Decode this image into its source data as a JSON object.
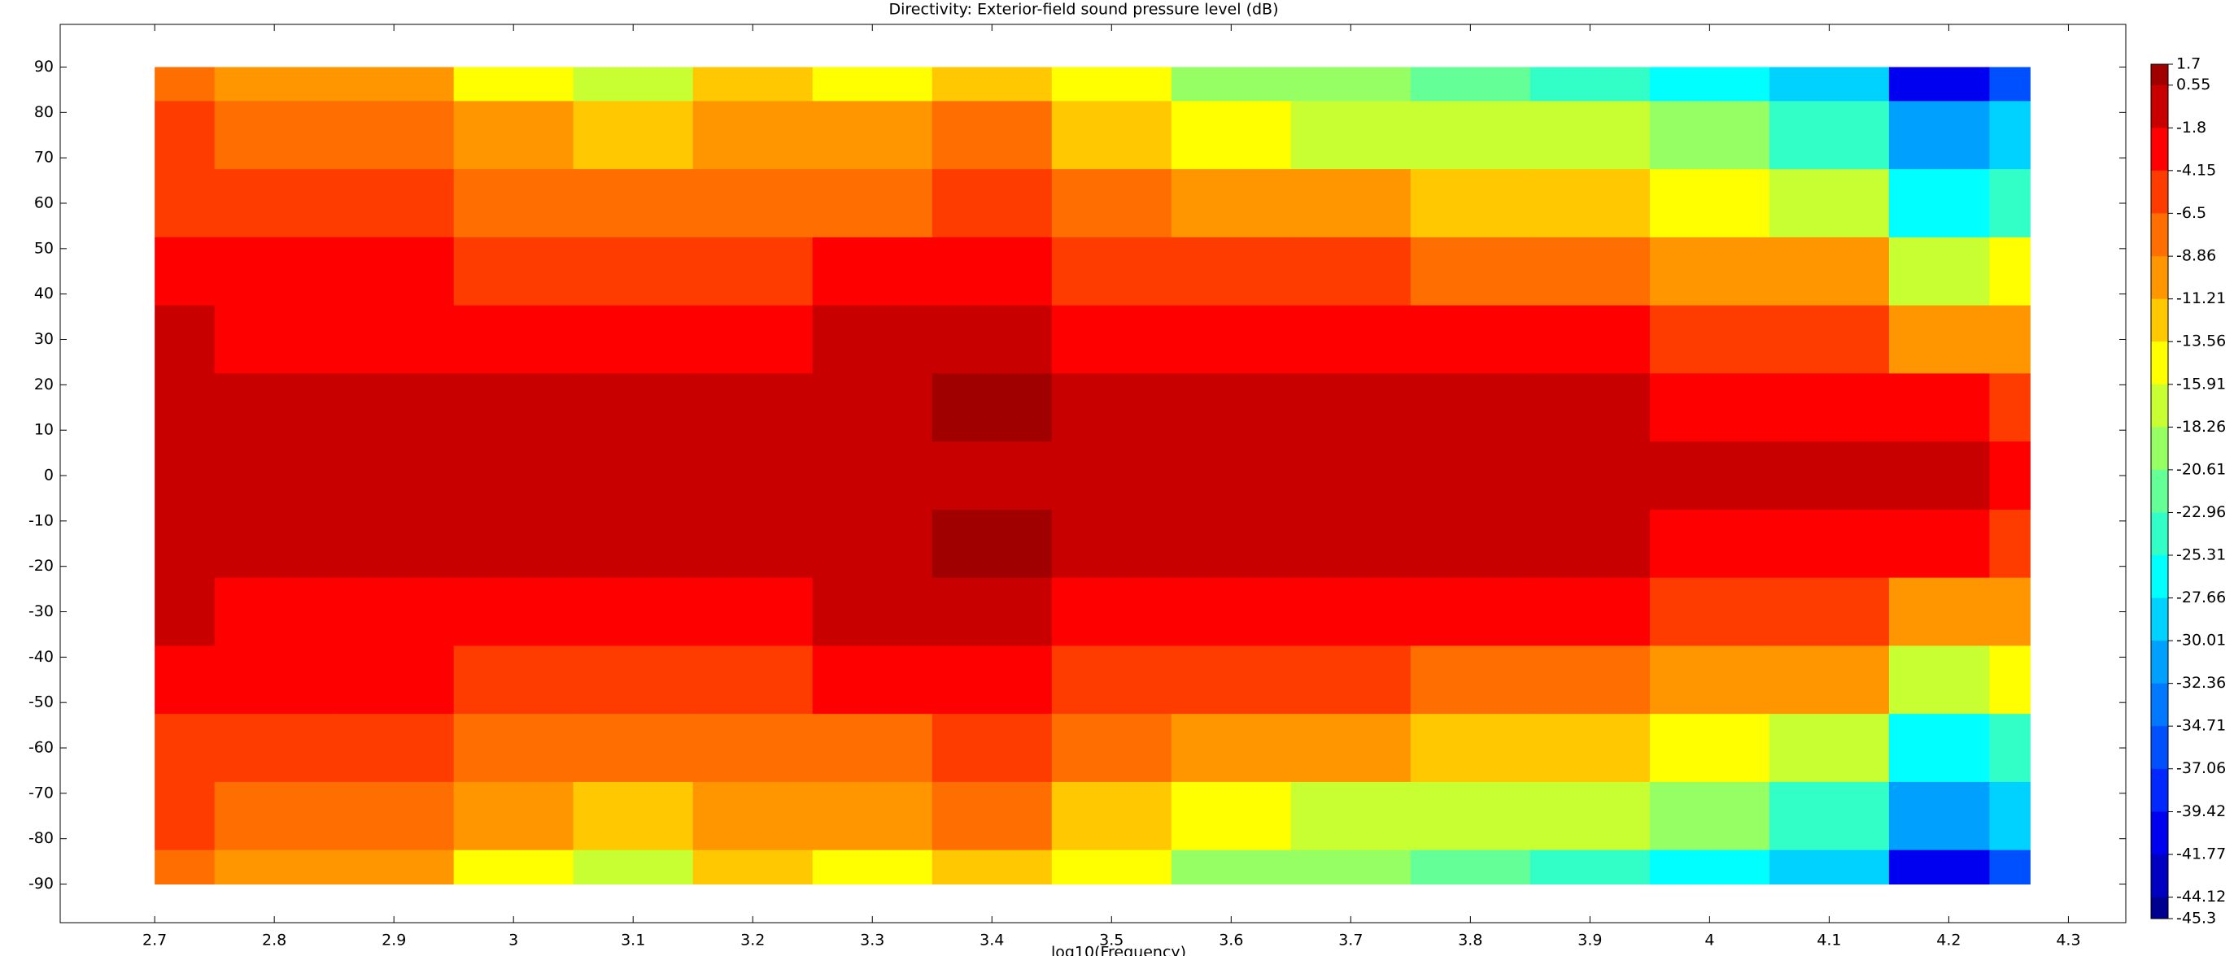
{
  "chart_data": {
    "type": "contour",
    "title": "Directivity: Exterior-field sound pressure level (dB)",
    "xlabel": "log10(Frequency)",
    "xlim": [
      2.621,
      4.348
    ],
    "ylim": [
      -98.5,
      99.4
    ],
    "xticks": [
      2.7,
      2.8,
      2.9,
      3,
      3.1,
      3.2,
      3.3,
      3.4,
      3.5,
      3.6,
      3.7,
      3.8,
      3.9,
      4,
      4.1,
      4.2,
      4.3
    ],
    "yticks": [
      -90,
      -80,
      -70,
      -60,
      -50,
      -40,
      -30,
      -20,
      -10,
      0,
      10,
      20,
      30,
      40,
      50,
      60,
      70,
      80,
      90
    ],
    "x": [
      2.7,
      2.8,
      2.9,
      3.0,
      3.1,
      3.2,
      3.3,
      3.4,
      3.5,
      3.6,
      3.7,
      3.8,
      3.9,
      4.0,
      4.1,
      4.2,
      4.268
    ],
    "y": [
      90,
      75,
      60,
      45,
      30,
      15,
      0,
      -15,
      -30,
      -45,
      -60,
      -75,
      -90
    ],
    "z": [
      [
        -8,
        -9,
        -11,
        -14,
        -17,
        -13,
        -14,
        -13,
        -15,
        -19,
        -20,
        -22,
        -24,
        -26,
        -30,
        -40,
        -36
      ],
      [
        -6,
        -6.5,
        -8,
        -10,
        -13,
        -11,
        -10,
        -8,
        -12,
        -14,
        -16,
        -17,
        -18,
        -20,
        -24,
        -32,
        -30
      ],
      [
        -5,
        -5.5,
        -6,
        -7,
        -8,
        -7.5,
        -7,
        -5,
        -8,
        -9,
        -11,
        -12,
        -13,
        -14,
        -17,
        -26,
        -24
      ],
      [
        -3,
        -3.5,
        -4,
        -4.5,
        -5,
        -5,
        -4,
        -3,
        -5,
        -5,
        -6,
        -7,
        -8,
        -9,
        -11,
        -17,
        -15
      ],
      [
        -1.5,
        -2,
        -2,
        -2.5,
        -3,
        -2.5,
        -1.5,
        -1,
        -2.5,
        -3,
        -3,
        -3.5,
        -4,
        -4.5,
        -6,
        -10,
        -10
      ],
      [
        -1,
        -1,
        -1,
        -1,
        -1.2,
        -1,
        -1,
        0.8,
        -1.5,
        -1.2,
        -1.2,
        -1.5,
        -1.5,
        -1.8,
        -2.5,
        -4,
        -5
      ],
      [
        -0.8,
        -0.8,
        -0.8,
        -0.8,
        -0.8,
        -0.8,
        -0.8,
        -0.5,
        -1,
        -0.8,
        -0.8,
        -0.5,
        -0.8,
        -1,
        -1,
        -1.5,
        -2
      ],
      [
        -1,
        -1,
        -1,
        -1,
        -1.2,
        -1,
        -1,
        0.8,
        -1.5,
        -1.2,
        -1.2,
        -1.5,
        -1.5,
        -1.8,
        -2.5,
        -4,
        -5
      ],
      [
        -1.5,
        -2,
        -2,
        -2.5,
        -3,
        -2.5,
        -1.5,
        -1,
        -2.5,
        -3,
        -3,
        -3.5,
        -4,
        -4.5,
        -6,
        -10,
        -10
      ],
      [
        -3,
        -3.5,
        -4,
        -4.5,
        -5,
        -5,
        -4,
        -3,
        -5,
        -5,
        -6,
        -7,
        -8,
        -9,
        -11,
        -17,
        -15
      ],
      [
        -5,
        -5.5,
        -6,
        -7,
        -8,
        -7.5,
        -7,
        -5,
        -8,
        -9,
        -11,
        -12,
        -13,
        -14,
        -17,
        -26,
        -24
      ],
      [
        -6,
        -6.5,
        -8,
        -10,
        -13,
        -11,
        -10,
        -8,
        -12,
        -14,
        -16,
        -17,
        -18,
        -20,
        -24,
        -32,
        -30
      ],
      [
        -8,
        -9,
        -11,
        -14,
        -17,
        -13,
        -14,
        -13,
        -15,
        -19,
        -20,
        -22,
        -24,
        -26,
        -30,
        -40,
        -36
      ]
    ],
    "colorbar": {
      "ticks": [
        1.7,
        0.55,
        -1.8,
        -4.15,
        -6.5,
        -8.86,
        -11.21,
        -13.56,
        -15.91,
        -18.26,
        -20.61,
        -22.96,
        -25.31,
        -27.66,
        -30.01,
        -32.36,
        -34.71,
        -37.06,
        -39.42,
        -41.77,
        -44.12,
        -45.3
      ],
      "colors": [
        "#a00000",
        "#c80000",
        "#ff0000",
        "#ff3c00",
        "#ff6e00",
        "#ff9600",
        "#ffc800",
        "#ffff00",
        "#c8ff32",
        "#96ff64",
        "#64ff96",
        "#32ffc8",
        "#00ffff",
        "#00d2ff",
        "#00a0ff",
        "#0078ff",
        "#0050ff",
        "#0028ff",
        "#0000f0",
        "#0000c0",
        "#000090"
      ]
    }
  }
}
